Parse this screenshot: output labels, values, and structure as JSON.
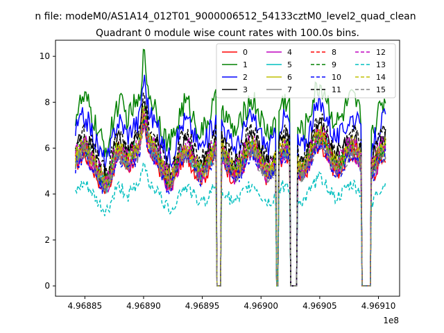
{
  "chart_data": {
    "type": "line",
    "suptitle": "n file: modeM0/AS1A14_012T01_9000006512_54133cztM0_level2_quad_clean",
    "title": "Quadrant 0 module wise count rates with 100.0s bins.",
    "xlabel": "",
    "ylabel": "",
    "x_offset_label": "1e8",
    "xlim": [
      4.968825,
      4.969118
    ],
    "ylim": [
      -0.45,
      10.7
    ],
    "x_ticks": [
      4.96885,
      4.9689,
      4.96895,
      4.969,
      4.96905,
      4.9691
    ],
    "x_tick_labels": [
      "4.96885",
      "4.96890",
      "4.96895",
      "4.96900",
      "4.96905",
      "4.96910"
    ],
    "y_ticks": [
      0,
      2,
      4,
      6,
      8,
      10
    ],
    "y_tick_labels": [
      "0",
      "2",
      "4",
      "6",
      "8",
      "10"
    ],
    "x_range": [
      4.968842,
      4.969106
    ],
    "gaps": [
      [
        4.968962,
        4.968966
      ],
      [
        4.969013,
        4.969015
      ],
      [
        4.969025,
        4.969031
      ],
      [
        4.969086,
        4.969094
      ]
    ],
    "legend_position": "upper-right",
    "legend_columns": 4,
    "series": [
      {
        "name": "0",
        "color": "#ff0000",
        "dash": "solid",
        "base": 5.2
      },
      {
        "name": "1",
        "color": "#008000",
        "dash": "solid",
        "base": 7.4
      },
      {
        "name": "2",
        "color": "#0000ff",
        "dash": "solid",
        "base": 6.7
      },
      {
        "name": "3",
        "color": "#000000",
        "dash": "solid",
        "base": 5.9
      },
      {
        "name": "4",
        "color": "#bf00bf",
        "dash": "solid",
        "base": 5.3
      },
      {
        "name": "5",
        "color": "#00bfbf",
        "dash": "solid",
        "base": 5.5
      },
      {
        "name": "6",
        "color": "#bfbf00",
        "dash": "solid",
        "base": 5.6
      },
      {
        "name": "7",
        "color": "#808080",
        "dash": "solid",
        "base": 5.4
      },
      {
        "name": "8",
        "color": "#ff0000",
        "dash": "dashed",
        "base": 5.5
      },
      {
        "name": "9",
        "color": "#008000",
        "dash": "dashed",
        "base": 5.6
      },
      {
        "name": "10",
        "color": "#0000ff",
        "dash": "dashed",
        "base": 5.2
      },
      {
        "name": "11",
        "color": "#000000",
        "dash": "dashed",
        "base": 6.1
      },
      {
        "name": "12",
        "color": "#bf00bf",
        "dash": "dashed",
        "base": 5.7
      },
      {
        "name": "13",
        "color": "#00bfbf",
        "dash": "dashed",
        "base": 4.0
      },
      {
        "name": "14",
        "color": "#bfbf00",
        "dash": "dashed",
        "base": 5.6
      },
      {
        "name": "15",
        "color": "#808080",
        "dash": "dashed",
        "base": 5.3
      }
    ]
  }
}
